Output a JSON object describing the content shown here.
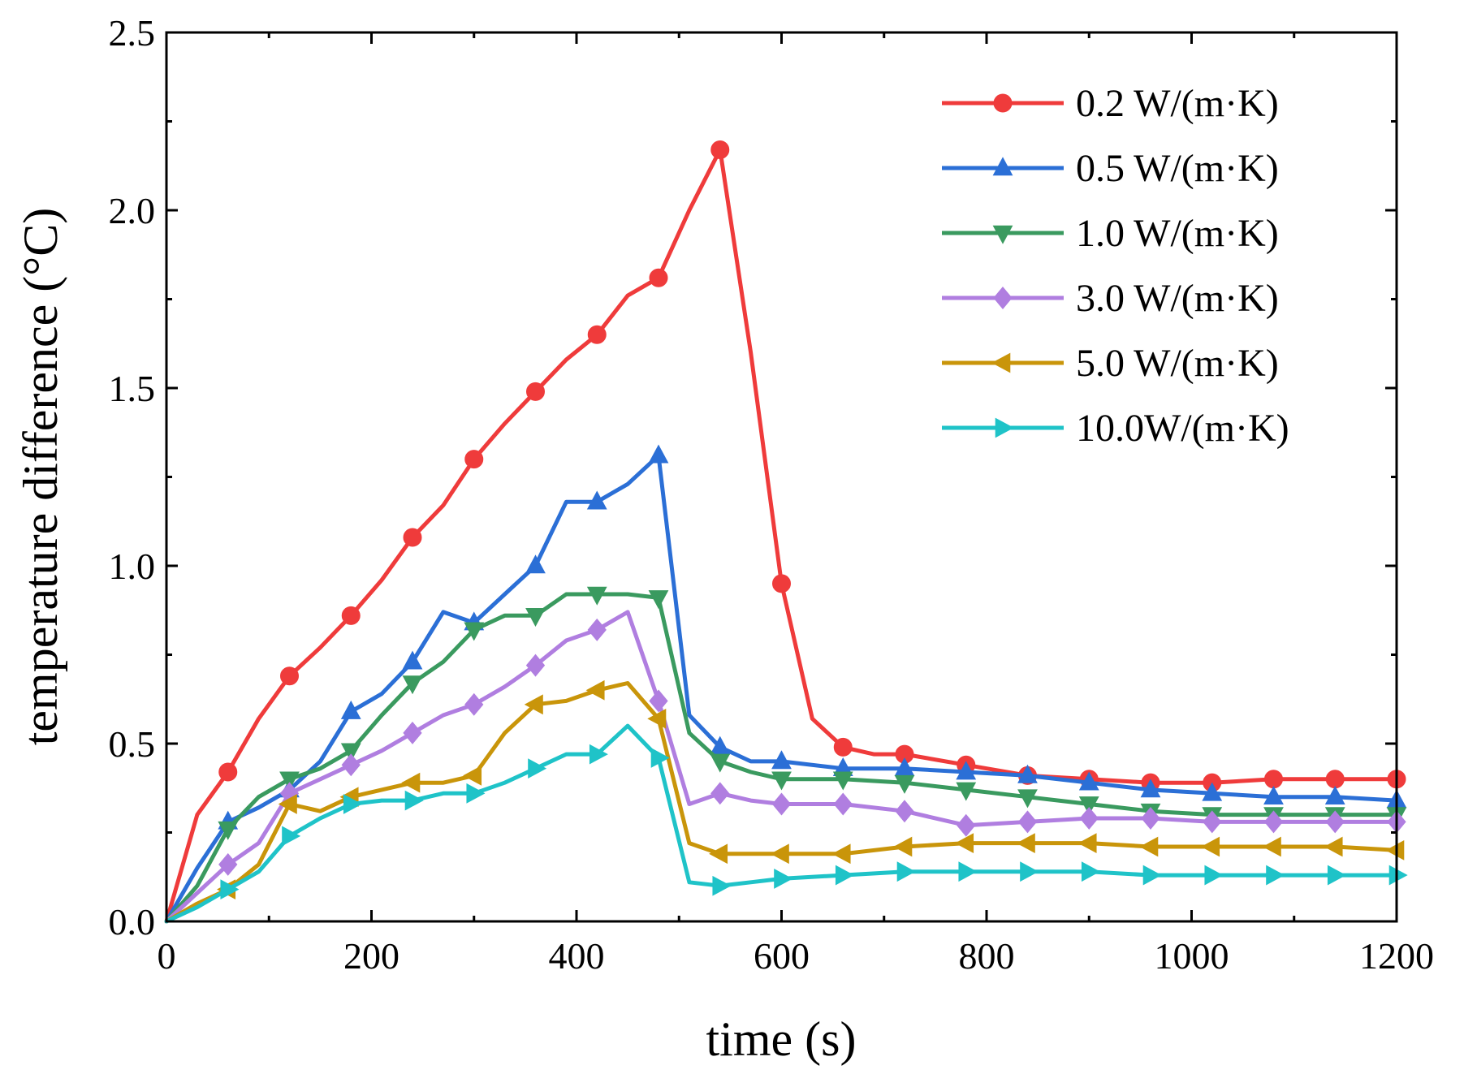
{
  "chart_data": {
    "type": "line",
    "title": "",
    "xlabel": "time (s)",
    "ylabel": "temperature difference (°C)",
    "xlim": [
      0,
      1200
    ],
    "ylim": [
      0,
      2.5
    ],
    "xticks": [
      0,
      200,
      400,
      600,
      800,
      1000,
      1200
    ],
    "xtick_labels": [
      "0",
      "200",
      "400",
      "600",
      "800",
      "1000",
      "1200"
    ],
    "yticks": [
      0,
      0.5,
      1.0,
      1.5,
      2.0,
      2.5
    ],
    "ytick_labels": [
      "0.0",
      "0.5",
      "1.0",
      "1.5",
      "2.0",
      "2.5"
    ],
    "grid": false,
    "legend_position": "top-right",
    "series": [
      {
        "name": "0.2 W/(m·K)",
        "color": "#ef3b3b",
        "marker": "circle",
        "x": [
          0,
          30,
          60,
          90,
          120,
          150,
          180,
          210,
          240,
          270,
          300,
          330,
          360,
          390,
          420,
          450,
          480,
          510,
          540,
          570,
          600,
          630,
          660,
          690,
          720,
          780,
          840,
          900,
          960,
          1020,
          1080,
          1140,
          1200
        ],
        "y": [
          0,
          0.3,
          0.42,
          0.57,
          0.69,
          0.77,
          0.86,
          0.96,
          1.08,
          1.17,
          1.3,
          1.4,
          1.49,
          1.58,
          1.65,
          1.76,
          1.81,
          2.0,
          2.17,
          1.6,
          0.95,
          0.57,
          0.49,
          0.47,
          0.47,
          0.44,
          0.41,
          0.4,
          0.39,
          0.39,
          0.4,
          0.4,
          0.4
        ],
        "marker_x": [
          60,
          120,
          180,
          240,
          300,
          360,
          420,
          480,
          540,
          600,
          660,
          720,
          780,
          840,
          900,
          960,
          1020,
          1080,
          1140,
          1200
        ]
      },
      {
        "name": "0.5 W/(m·K)",
        "color": "#2b6fd6",
        "marker": "triangle-up",
        "x": [
          0,
          30,
          60,
          90,
          120,
          150,
          180,
          210,
          240,
          270,
          300,
          330,
          360,
          390,
          420,
          450,
          480,
          510,
          540,
          570,
          600,
          660,
          720,
          780,
          840,
          900,
          960,
          1020,
          1080,
          1140,
          1200
        ],
        "y": [
          0,
          0.15,
          0.28,
          0.32,
          0.37,
          0.45,
          0.59,
          0.64,
          0.73,
          0.87,
          0.84,
          0.92,
          1.0,
          1.18,
          1.18,
          1.23,
          1.31,
          0.58,
          0.49,
          0.45,
          0.45,
          0.43,
          0.43,
          0.42,
          0.41,
          0.39,
          0.37,
          0.36,
          0.35,
          0.35,
          0.34
        ],
        "marker_x": [
          60,
          120,
          180,
          240,
          300,
          360,
          420,
          480,
          540,
          600,
          660,
          720,
          780,
          840,
          900,
          960,
          1020,
          1080,
          1140,
          1200
        ]
      },
      {
        "name": "1.0 W/(m·K)",
        "color": "#3a9a5f",
        "marker": "triangle-down",
        "x": [
          0,
          30,
          60,
          90,
          120,
          150,
          180,
          210,
          240,
          270,
          300,
          330,
          360,
          390,
          420,
          450,
          480,
          510,
          540,
          570,
          600,
          660,
          720,
          780,
          840,
          900,
          960,
          1020,
          1080,
          1140,
          1200
        ],
        "y": [
          0,
          0.1,
          0.26,
          0.35,
          0.4,
          0.43,
          0.48,
          0.58,
          0.67,
          0.73,
          0.82,
          0.86,
          0.86,
          0.92,
          0.92,
          0.92,
          0.91,
          0.53,
          0.45,
          0.42,
          0.4,
          0.4,
          0.39,
          0.37,
          0.35,
          0.33,
          0.31,
          0.3,
          0.3,
          0.3,
          0.3
        ],
        "marker_x": [
          60,
          120,
          180,
          240,
          300,
          360,
          420,
          480,
          540,
          600,
          660,
          720,
          780,
          840,
          900,
          960,
          1020,
          1080,
          1140,
          1200
        ]
      },
      {
        "name": "3.0 W/(m·K)",
        "color": "#b07ee0",
        "marker": "diamond",
        "x": [
          0,
          30,
          60,
          90,
          120,
          150,
          180,
          210,
          240,
          270,
          300,
          330,
          360,
          390,
          420,
          450,
          480,
          510,
          540,
          570,
          600,
          660,
          720,
          780,
          840,
          900,
          960,
          1020,
          1080,
          1140,
          1200
        ],
        "y": [
          0,
          0.08,
          0.16,
          0.22,
          0.36,
          0.4,
          0.44,
          0.48,
          0.53,
          0.58,
          0.61,
          0.66,
          0.72,
          0.79,
          0.82,
          0.87,
          0.62,
          0.33,
          0.36,
          0.34,
          0.33,
          0.33,
          0.31,
          0.27,
          0.28,
          0.29,
          0.29,
          0.28,
          0.28,
          0.28,
          0.28
        ],
        "marker_x": [
          60,
          120,
          180,
          240,
          300,
          360,
          420,
          480,
          540,
          600,
          660,
          720,
          780,
          840,
          900,
          960,
          1020,
          1080,
          1140,
          1200
        ]
      },
      {
        "name": "5.0 W/(m·K)",
        "color": "#c9950a",
        "marker": "triangle-left",
        "x": [
          0,
          30,
          60,
          90,
          120,
          150,
          180,
          210,
          240,
          270,
          300,
          330,
          360,
          390,
          420,
          450,
          480,
          510,
          540,
          570,
          600,
          660,
          720,
          780,
          840,
          900,
          960,
          1020,
          1080,
          1140,
          1200
        ],
        "y": [
          0,
          0.05,
          0.09,
          0.16,
          0.33,
          0.31,
          0.35,
          0.37,
          0.39,
          0.39,
          0.41,
          0.53,
          0.61,
          0.62,
          0.65,
          0.67,
          0.57,
          0.22,
          0.19,
          0.19,
          0.19,
          0.19,
          0.21,
          0.22,
          0.22,
          0.22,
          0.21,
          0.21,
          0.21,
          0.21,
          0.2
        ],
        "marker_x": [
          60,
          120,
          180,
          240,
          300,
          360,
          420,
          480,
          540,
          600,
          660,
          720,
          780,
          840,
          900,
          960,
          1020,
          1080,
          1140,
          1200
        ]
      },
      {
        "name": "10.0W/(m·K)",
        "color": "#1fc3c8",
        "marker": "triangle-right",
        "x": [
          0,
          30,
          60,
          90,
          120,
          150,
          180,
          210,
          240,
          270,
          300,
          330,
          360,
          390,
          420,
          450,
          480,
          510,
          540,
          570,
          600,
          660,
          720,
          780,
          840,
          900,
          960,
          1020,
          1080,
          1140,
          1200
        ],
        "y": [
          0,
          0.04,
          0.09,
          0.14,
          0.24,
          0.29,
          0.33,
          0.34,
          0.34,
          0.36,
          0.36,
          0.39,
          0.43,
          0.47,
          0.47,
          0.55,
          0.46,
          0.11,
          0.1,
          0.11,
          0.12,
          0.13,
          0.14,
          0.14,
          0.14,
          0.14,
          0.13,
          0.13,
          0.13,
          0.13,
          0.13
        ],
        "marker_x": [
          60,
          120,
          180,
          240,
          300,
          360,
          420,
          480,
          540,
          600,
          660,
          720,
          780,
          840,
          900,
          960,
          1020,
          1080,
          1140,
          1200
        ]
      }
    ]
  }
}
